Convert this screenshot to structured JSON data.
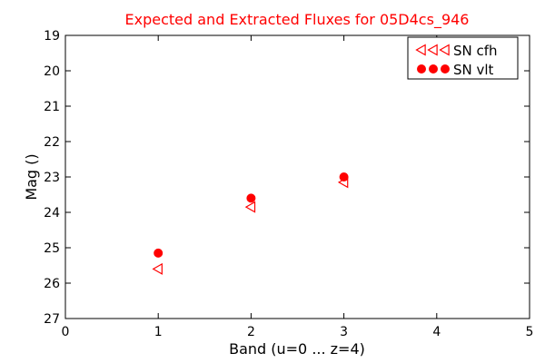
{
  "chart_data": {
    "type": "scatter",
    "title": "Expected and Extracted Fluxes for 05D4cs_946",
    "xlabel": "Band (u=0 ... z=4)",
    "ylabel": "Mag ()",
    "xlim": [
      0,
      5
    ],
    "ylim": [
      27,
      19
    ],
    "y_inverted": true,
    "xticks": [
      "0",
      "1",
      "2",
      "3",
      "4",
      "5"
    ],
    "yticks": [
      "19",
      "20",
      "21",
      "22",
      "23",
      "24",
      "25",
      "26",
      "27"
    ],
    "grid": false,
    "legend_position": "top-right",
    "title_color": "#ff0000",
    "series": [
      {
        "name": "SN cfh",
        "marker": "triangle-left",
        "color": "#ff0000",
        "points": [
          {
            "x": 1,
            "y": 25.6
          },
          {
            "x": 2,
            "y": 23.85
          },
          {
            "x": 3,
            "y": 23.15
          }
        ]
      },
      {
        "name": "SN vlt",
        "marker": "circle",
        "color": "#ff0000",
        "points": [
          {
            "x": 1,
            "y": 25.15
          },
          {
            "x": 2,
            "y": 23.6
          },
          {
            "x": 3,
            "y": 23.0
          }
        ]
      }
    ]
  }
}
